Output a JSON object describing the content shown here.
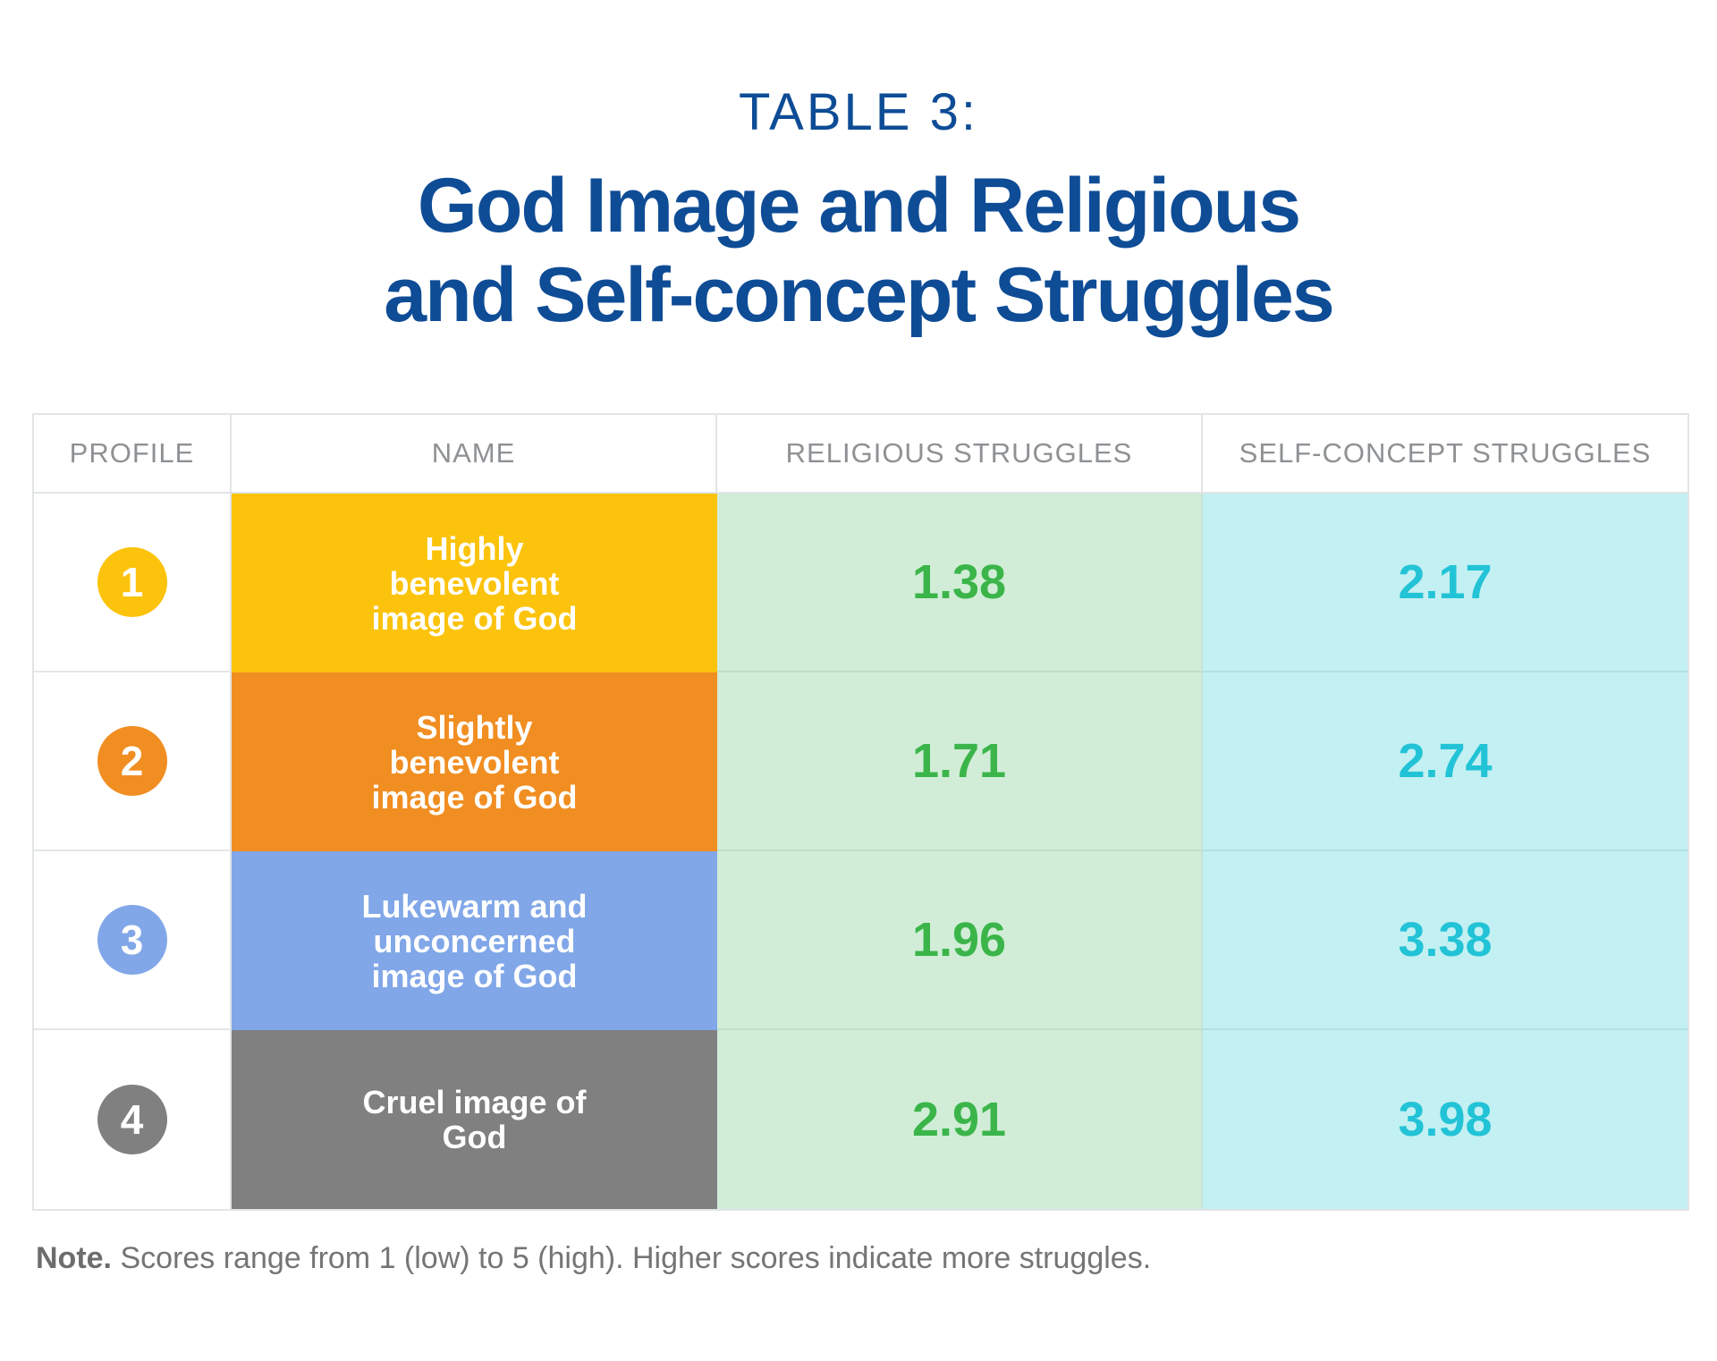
{
  "header": {
    "eyebrow": "TABLE 3:",
    "title_line1": "God Image and Religious",
    "title_line2": "and Self-concept Struggles"
  },
  "columns": [
    "PROFILE",
    "NAME",
    "RELIGIOUS STRUGGLES",
    "SELF-CONCEPT STRUGGLES"
  ],
  "rows": [
    {
      "profile": "1",
      "name": "Highly benevolent image of God",
      "religious": "1.38",
      "self_concept": "2.17"
    },
    {
      "profile": "2",
      "name": "Slightly benevolent image of God",
      "religious": "1.71",
      "self_concept": "2.74"
    },
    {
      "profile": "3",
      "name": "Lukewarm and unconcerned image of God",
      "religious": "1.96",
      "self_concept": "3.38"
    },
    {
      "profile": "4",
      "name": "Cruel image of God",
      "religious": "2.91",
      "self_concept": "3.98"
    }
  ],
  "note": {
    "label": "Note.",
    "text": " Scores range from 1 (low) to 5 (high). Higher scores indicate more struggles."
  },
  "colors": {
    "profile_1": "#fcc30c",
    "profile_2": "#f18e22",
    "profile_3": "#81a7e8",
    "profile_4": "#808080",
    "religious_bg": "#d1edd7",
    "religious_text": "#3bb54a",
    "self_concept_bg": "#c3f0f2",
    "self_concept_text": "#22c3d6",
    "title": "#0e4c96"
  },
  "chart_data": {
    "type": "table",
    "title": "TABLE 3: God Image and Religious and Self-concept Struggles",
    "columns": [
      "PROFILE",
      "NAME",
      "RELIGIOUS STRUGGLES",
      "SELF-CONCEPT STRUGGLES"
    ],
    "rows": [
      [
        1,
        "Highly benevolent image of God",
        1.38,
        2.17
      ],
      [
        2,
        "Slightly benevolent image of God",
        1.71,
        2.74
      ],
      [
        3,
        "Lukewarm and unconcerned image of God",
        1.96,
        3.38
      ],
      [
        4,
        "Cruel image of God",
        2.91,
        3.98
      ]
    ]
  }
}
